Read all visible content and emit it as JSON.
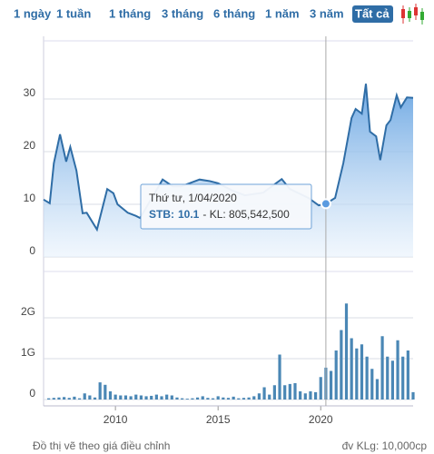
{
  "tabs": [
    "1 ngày",
    "1 tuần",
    "1 tháng",
    "3 tháng",
    "6 tháng",
    "1 năm",
    "3 năm",
    "Tất cả"
  ],
  "active_tab": 7,
  "tooltip": {
    "date": "Thứ tư, 1/04/2020",
    "label": "STB:",
    "value": 10.1,
    "volume_text": "- KL: 805,542,500",
    "x": 2020.25
  },
  "footer_left": "Đồ thị vẽ theo giá điều chỉnh",
  "footer_right": "đv KLg: 10,000cp",
  "chart_data": [
    {
      "type": "area",
      "color": "#2f6da6",
      "x": [
        2006.5,
        2006.8,
        2007.0,
        2007.3,
        2007.6,
        2007.8,
        2008.1,
        2008.4,
        2008.6,
        2009.1,
        2009.6,
        2009.9,
        2010.1,
        2010.6,
        2011.0,
        2011.2,
        2012.3,
        2012.8,
        2013.2,
        2014.1,
        2014.6,
        2015.0,
        2015.7,
        2016.3,
        2017.2,
        2018.1,
        2018.5,
        2019.4,
        2019.9,
        2020.25,
        2020.7,
        2021.1,
        2021.5,
        2021.7,
        2022.0,
        2022.2,
        2022.4,
        2022.7,
        2022.9,
        2023.2,
        2023.4,
        2023.7,
        2023.9,
        2024.2,
        2024.5
      ],
      "values": [
        10.9,
        10.2,
        17.8,
        23.3,
        18.1,
        20.9,
        16.4,
        8.3,
        8.4,
        5.2,
        12.9,
        12.1,
        10,
        8.4,
        7.8,
        7.4,
        14.7,
        13.4,
        13.4,
        14.7,
        14.4,
        14,
        12.6,
        11.7,
        12.2,
        14.8,
        12.9,
        11.2,
        9.8,
        10.1,
        11.2,
        17.8,
        26.4,
        28.1,
        27.2,
        32.9,
        23.8,
        22.9,
        18.4,
        25,
        26,
        30.7,
        28.4,
        30.3,
        30.2
      ],
      "xlim": [
        2006.5,
        2024.5
      ],
      "ylim": [
        0,
        40
      ],
      "yticks": [
        0,
        10,
        20,
        30
      ],
      "grid": true
    },
    {
      "type": "bar",
      "color": "#4a87b5",
      "x": [
        2006.75,
        2007,
        2007.25,
        2007.5,
        2007.75,
        2008,
        2008.25,
        2008.5,
        2008.75,
        2009,
        2009.25,
        2009.5,
        2009.75,
        2010,
        2010.25,
        2010.5,
        2010.75,
        2011,
        2011.25,
        2011.5,
        2011.75,
        2012,
        2012.25,
        2012.5,
        2012.75,
        2013,
        2013.25,
        2013.5,
        2013.75,
        2014,
        2014.25,
        2014.5,
        2014.75,
        2015,
        2015.25,
        2015.5,
        2015.75,
        2016,
        2016.25,
        2016.5,
        2016.75,
        2017,
        2017.25,
        2017.5,
        2017.75,
        2018,
        2018.25,
        2018.5,
        2018.75,
        2019,
        2019.25,
        2019.5,
        2019.75,
        2020,
        2020.25,
        2020.5,
        2020.75,
        2021,
        2021.25,
        2021.5,
        2021.75,
        2022,
        2022.25,
        2022.5,
        2022.75,
        2023,
        2023.25,
        2023.5,
        2023.75,
        2024,
        2024.25,
        2024.5
      ],
      "values": [
        30000000.0,
        40000000.0,
        50000000.0,
        60000000.0,
        40000000.0,
        70000000.0,
        30000000.0,
        150000000.0,
        100000000.0,
        50000000.0,
        420000000.0,
        360000000.0,
        200000000.0,
        120000000.0,
        100000000.0,
        100000000.0,
        80000000.0,
        120000000.0,
        100000000.0,
        80000000.0,
        90000000.0,
        120000000.0,
        80000000.0,
        120000000.0,
        100000000.0,
        50000000.0,
        30000000.0,
        20000000.0,
        30000000.0,
        50000000.0,
        80000000.0,
        40000000.0,
        30000000.0,
        80000000.0,
        50000000.0,
        40000000.0,
        70000000.0,
        30000000.0,
        40000000.0,
        50000000.0,
        80000000.0,
        150000000.0,
        300000000.0,
        120000000.0,
        350000000.0,
        1100000000.0,
        350000000.0,
        380000000.0,
        400000000.0,
        200000000.0,
        150000000.0,
        200000000.0,
        180000000.0,
        550000000.0,
        780000000.0,
        700000000.0,
        1200000000.0,
        1700000000.0,
        2350000000.0,
        1500000000.0,
        1250000000.0,
        1350000000.0,
        1050000000.0,
        750000000.0,
        500000000.0,
        1550000000.0,
        1050000000.0,
        950000000.0,
        1450000000.0,
        1050000000.0,
        1200000000.0,
        180000000.0
      ],
      "xlim": [
        2006.5,
        2024.5
      ],
      "xticks": [
        2010,
        2015,
        2020
      ],
      "ylim": [
        0,
        3000000000
      ],
      "yticks": [
        0,
        {
          "value": 1000000000,
          "label": "1G"
        },
        {
          "value": 2000000000,
          "label": "2G"
        }
      ],
      "grid": true
    }
  ]
}
